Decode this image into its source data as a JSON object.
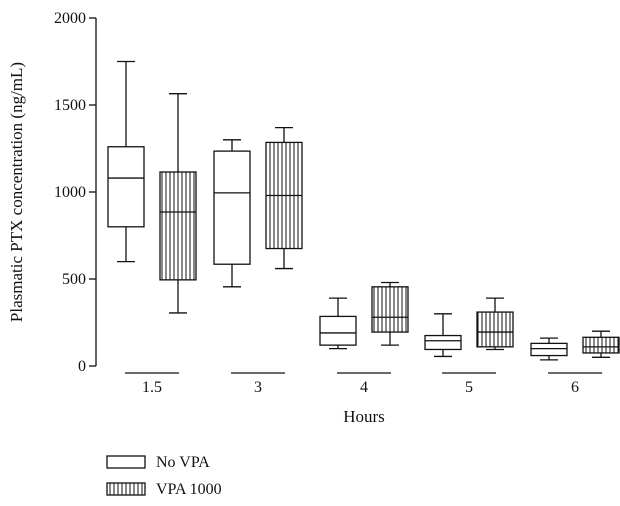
{
  "chart_data": {
    "type": "box",
    "title": "",
    "xlabel": "Hours",
    "ylabel": "Plasmatic PTX concentration (ng/mL)",
    "ylim": [
      0,
      2000
    ],
    "yticks": [
      0,
      500,
      1000,
      1500,
      2000
    ],
    "categories": [
      "1.5",
      "3",
      "4",
      "5",
      "6"
    ],
    "grid": false,
    "legend_position": "bottom-left",
    "series": [
      {
        "name": "No VPA",
        "fill_pattern": "none",
        "boxes": [
          {
            "min": 600,
            "q1": 800,
            "median": 1080,
            "q3": 1260,
            "max": 1750
          },
          {
            "min": 455,
            "q1": 585,
            "median": 995,
            "q3": 1235,
            "max": 1300
          },
          {
            "min": 100,
            "q1": 120,
            "median": 190,
            "q3": 285,
            "max": 390
          },
          {
            "min": 55,
            "q1": 95,
            "median": 145,
            "q3": 175,
            "max": 300
          },
          {
            "min": 35,
            "q1": 60,
            "median": 100,
            "q3": 130,
            "max": 160
          }
        ]
      },
      {
        "name": "VPA 1000",
        "fill_pattern": "vertical-lines",
        "boxes": [
          {
            "min": 305,
            "q1": 495,
            "median": 885,
            "q3": 1115,
            "max": 1565
          },
          {
            "min": 560,
            "q1": 675,
            "median": 980,
            "q3": 1285,
            "max": 1370
          },
          {
            "min": 120,
            "q1": 195,
            "median": 280,
            "q3": 455,
            "max": 480
          },
          {
            "min": 95,
            "q1": 110,
            "median": 195,
            "q3": 310,
            "max": 390
          },
          {
            "min": 50,
            "q1": 75,
            "median": 110,
            "q3": 165,
            "max": 200
          }
        ]
      }
    ]
  }
}
